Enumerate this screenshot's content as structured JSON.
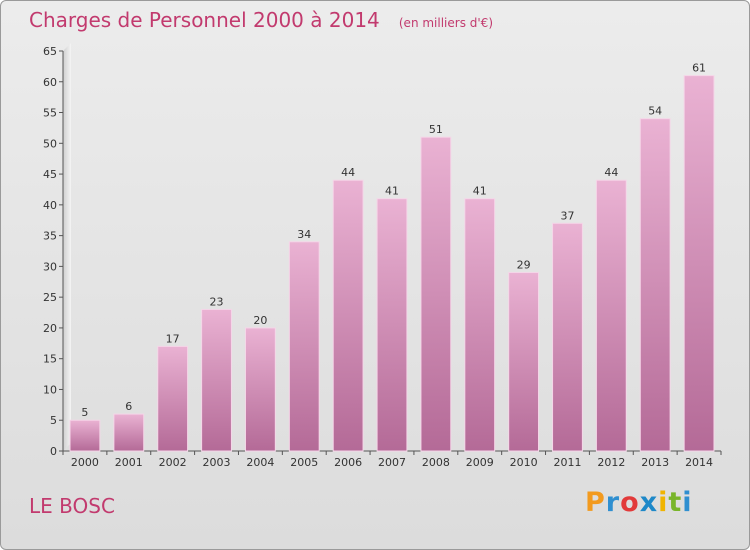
{
  "header": {
    "title": "Charges de Personnel 2000 à 2014",
    "subtitle": "(en milliers d'€)"
  },
  "footer": {
    "place": "LE BOSC",
    "logo": "Proxiti",
    "logo_colors": [
      "#f29a1e",
      "#2f8fd0",
      "#e23a3a",
      "#1e88c8",
      "#f0b400",
      "#79b52a",
      "#2f8fd0"
    ]
  },
  "colors": {
    "bar_light": "#eab2d3",
    "bar_dark": "#b46a97",
    "title": "#c23a6e"
  },
  "chart_data": {
    "type": "bar",
    "categories": [
      "2000",
      "2001",
      "2002",
      "2003",
      "2004",
      "2005",
      "2006",
      "2007",
      "2008",
      "2009",
      "2010",
      "2011",
      "2012",
      "2013",
      "2014"
    ],
    "values": [
      5,
      6,
      17,
      23,
      20,
      34,
      44,
      41,
      51,
      41,
      29,
      37,
      44,
      54,
      61
    ],
    "ylim": [
      0,
      65
    ],
    "yticks": [
      0,
      5,
      10,
      15,
      20,
      25,
      30,
      35,
      40,
      45,
      50,
      55,
      60,
      65
    ],
    "grid": false,
    "data_labels": true
  }
}
